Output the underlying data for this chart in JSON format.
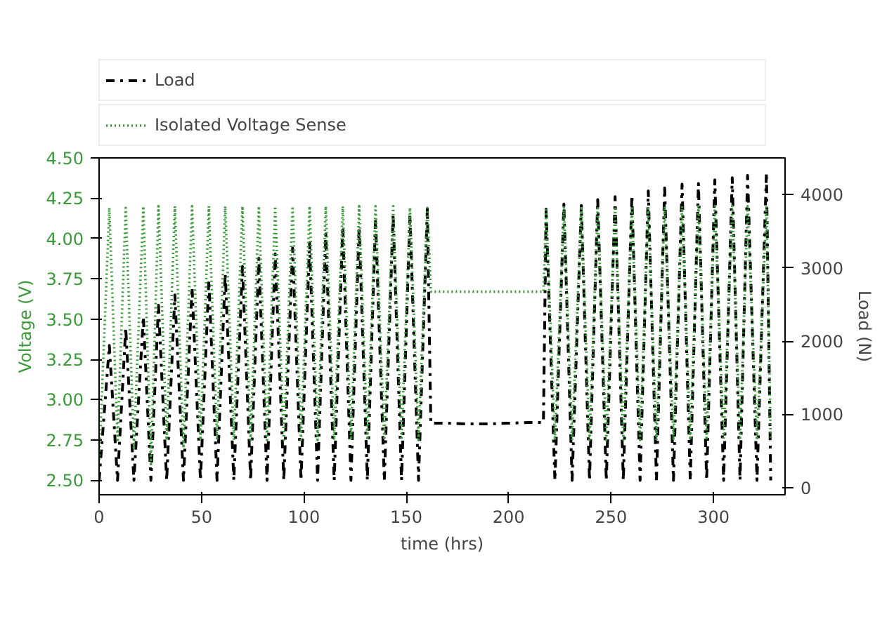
{
  "chart_data": {
    "type": "line",
    "xlabel": "time (hrs)",
    "ylabel": "Voltage (V)",
    "y2label": "Load (N)",
    "xlim": [
      0,
      335
    ],
    "xticks": [
      0,
      50,
      100,
      150,
      200,
      250,
      300
    ],
    "ylim": [
      2.41,
      4.5
    ],
    "yticks": [
      {
        "value": 2.5,
        "label": "2.50"
      },
      {
        "value": 2.75,
        "label": "2.75"
      },
      {
        "value": 3.0,
        "label": "3.00"
      },
      {
        "value": 3.25,
        "label": "3.25"
      },
      {
        "value": 3.5,
        "label": "3.50"
      },
      {
        "value": 3.75,
        "label": "3.75"
      },
      {
        "value": 4.0,
        "label": "4.00"
      },
      {
        "value": 4.25,
        "label": "4.25"
      },
      {
        "value": 4.5,
        "label": "4.50"
      }
    ],
    "y2lim": [
      -97,
      4500
    ],
    "y2ticks": [
      0,
      1000,
      2000,
      3000,
      4000
    ],
    "grid": false,
    "legend": "top",
    "marker": "none",
    "series": [
      {
        "name": "Load",
        "color": "#000000",
        "axis": "y2",
        "line_style": "dashdot",
        "x": [
          0,
          5,
          9,
          13,
          17,
          21.6,
          25.3,
          29,
          33,
          37,
          41.2,
          45.4,
          49.5,
          53.6,
          57.6,
          61.6,
          65.8,
          70,
          74,
          78,
          82,
          86,
          90.2,
          94.5,
          98.6,
          102.8,
          106.7,
          110.7,
          114.8,
          119,
          123,
          127,
          131,
          135,
          139.3,
          143.6,
          147.7,
          151.8,
          156,
          160.3,
          162,
          170,
          180,
          190,
          200,
          210,
          217,
          218.3,
          222.6,
          227,
          231,
          235.5,
          239.5,
          243.5,
          247.7,
          252,
          256,
          260.2,
          264.2,
          268.2,
          272.2,
          276.2,
          280.5,
          284.7,
          288.7,
          292.7,
          296.7,
          300.7,
          305,
          309.2,
          313,
          316.7,
          321.3,
          325.9,
          328
        ],
        "values": [
          100,
          1940,
          100,
          2180,
          100,
          2330,
          100,
          2490,
          100,
          2630,
          100,
          2730,
          100,
          2830,
          100,
          2920,
          100,
          3020,
          100,
          3130,
          100,
          3190,
          100,
          3270,
          100,
          3340,
          100,
          3460,
          100,
          3560,
          100,
          3560,
          100,
          3650,
          100,
          3720,
          100,
          3720,
          100,
          3800,
          880,
          880,
          870,
          870,
          880,
          890,
          890,
          3800,
          100,
          3870,
          100,
          3850,
          100,
          3930,
          100,
          3970,
          100,
          3990,
          100,
          4050,
          100,
          4090,
          100,
          4140,
          100,
          4150,
          100,
          4200,
          100,
          4230,
          100,
          4260,
          100,
          4300,
          100
        ]
      },
      {
        "name": "Isolated Voltage Sense",
        "color": "#3a9a3a",
        "line_style": "dotted",
        "x": [
          0,
          5,
          9,
          13,
          17,
          21.6,
          25.3,
          29,
          33,
          37,
          41.2,
          45.4,
          49.5,
          53.6,
          57.6,
          61.6,
          65.8,
          70,
          74,
          78,
          82,
          86,
          90.2,
          94.5,
          98.6,
          102.8,
          106.7,
          110.7,
          114.8,
          119,
          123,
          127,
          131,
          135,
          139.3,
          143.6,
          147.7,
          151.8,
          156,
          160.3,
          162,
          217,
          218.3,
          222.6,
          227,
          231,
          235.5,
          239.5,
          243.5,
          247.7,
          252,
          256,
          260.2,
          264.2,
          268.2,
          272.2,
          276.2,
          280.5,
          284.7,
          288.7,
          292.7,
          296.7,
          300.7,
          305,
          309.2,
          313,
          316.7,
          321.3,
          325.9,
          328
        ],
        "values": [
          2.6,
          4.19,
          2.75,
          4.19,
          2.7,
          4.2,
          2.6,
          4.2,
          2.75,
          4.2,
          2.7,
          4.2,
          2.75,
          4.2,
          2.75,
          4.2,
          2.75,
          4.2,
          2.75,
          4.2,
          2.75,
          4.2,
          2.75,
          4.2,
          2.75,
          4.2,
          2.75,
          4.2,
          2.75,
          4.2,
          2.75,
          4.2,
          2.75,
          4.2,
          2.75,
          4.2,
          2.75,
          4.19,
          2.75,
          4.19,
          3.67,
          3.67,
          4.19,
          2.75,
          4.2,
          2.75,
          4.2,
          2.75,
          4.2,
          2.75,
          4.2,
          2.75,
          4.2,
          2.75,
          4.2,
          2.75,
          4.2,
          2.75,
          4.2,
          2.75,
          4.2,
          2.75,
          4.2,
          2.75,
          4.2,
          2.75,
          4.2,
          2.75,
          4.2,
          2.75
        ]
      }
    ]
  }
}
